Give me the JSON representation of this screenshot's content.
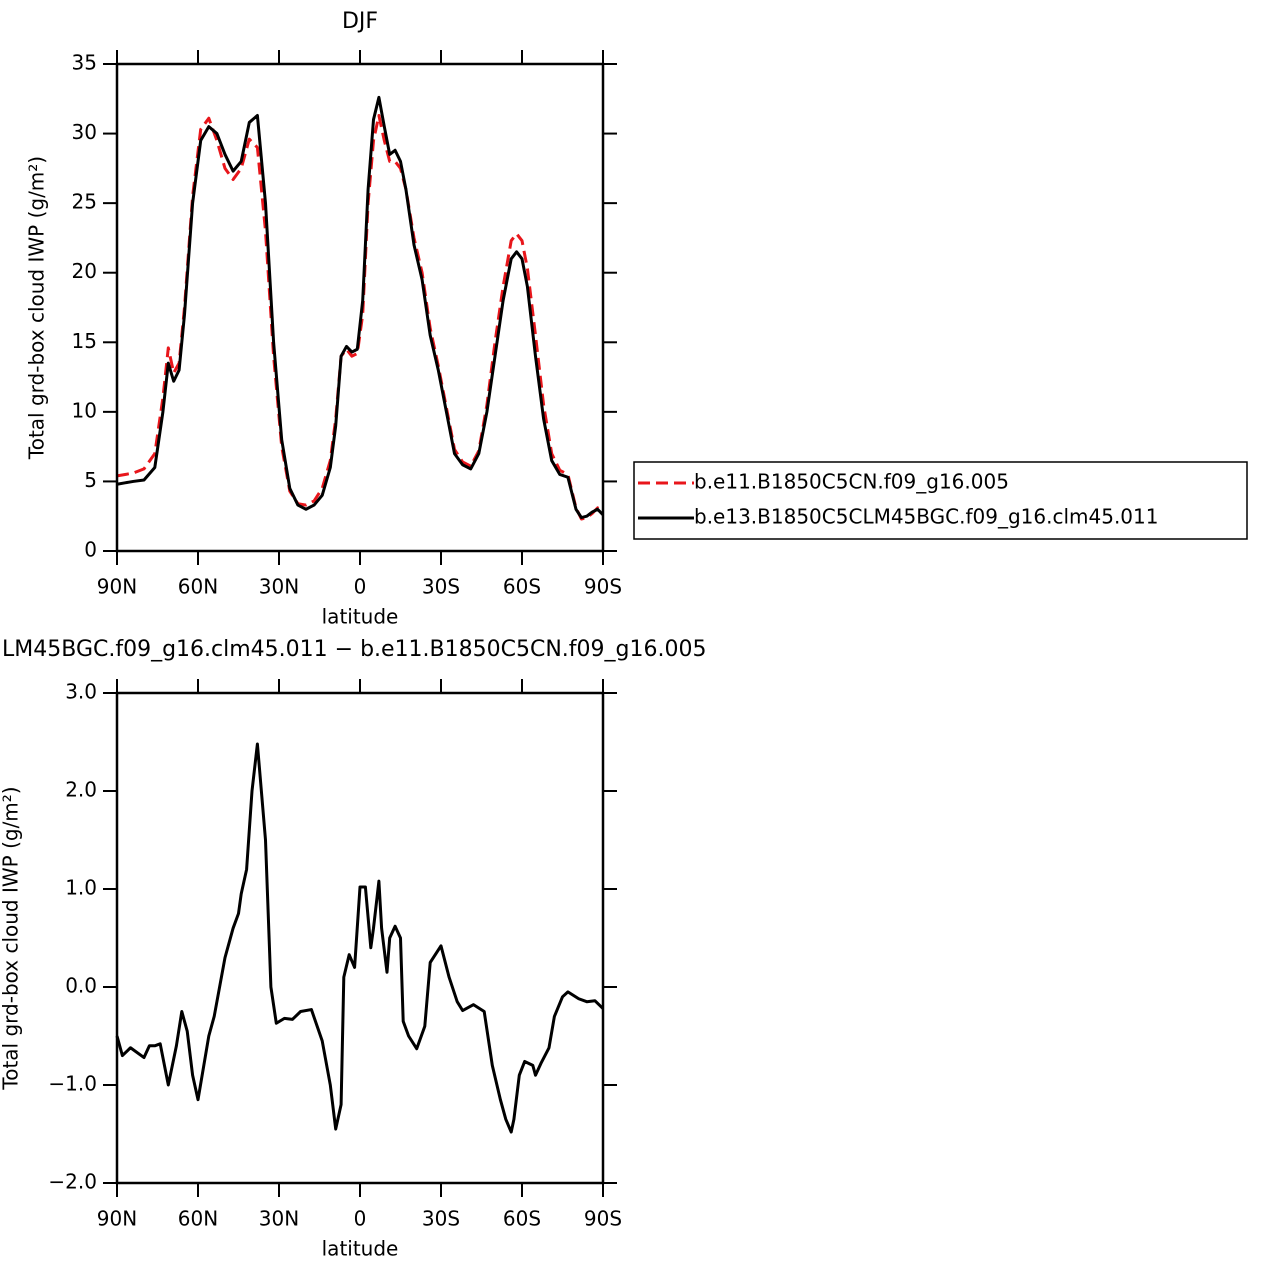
{
  "chart_data": [
    {
      "type": "line",
      "title": "DJF",
      "xlabel": "latitude",
      "ylabel": "Total grd-box cloud IWP (g/m²)",
      "x": [
        90,
        87,
        84,
        80,
        76,
        73,
        71,
        69,
        67,
        65,
        62,
        59,
        56,
        53,
        50,
        47,
        44,
        41,
        38,
        35,
        32,
        29,
        26,
        23,
        20,
        17,
        14,
        11,
        9,
        7,
        5,
        3,
        1,
        -1,
        -3,
        -5,
        -7,
        -9,
        -11,
        -13,
        -15,
        -17,
        -20,
        -23,
        -26,
        -29,
        -32,
        -35,
        -38,
        -41,
        -44,
        -47,
        -50,
        -53,
        -56,
        -58,
        -60,
        -62,
        -65,
        -68,
        -71,
        -74,
        -77,
        -80,
        -82,
        -84,
        -86,
        -88,
        -90
      ],
      "series": [
        {
          "name": "b.e11.B1850C5CN.f09_g16.005",
          "color": "#e8161b",
          "dash": "dashed",
          "values": [
            5.4,
            5.5,
            5.6,
            5.9,
            7,
            11,
            14.6,
            12.8,
            13.5,
            17.5,
            25.5,
            30.3,
            31.1,
            29.5,
            27.5,
            26.7,
            27.5,
            29.6,
            29,
            23,
            14,
            7.5,
            4.3,
            3.4,
            3.3,
            3.6,
            4.5,
            6.5,
            9.5,
            14,
            14.5,
            14,
            14.2,
            17,
            25,
            29.5,
            31.3,
            29.5,
            28,
            28,
            27.5,
            26,
            22.5,
            20,
            16,
            13.3,
            10.3,
            7.3,
            6.4,
            6.1,
            7.2,
            10.5,
            15,
            19,
            22.3,
            22.8,
            22.3,
            20.3,
            15.5,
            10.5,
            7,
            5.8,
            5.5,
            3.1,
            2.3,
            2.4,
            2.7,
            3.1,
            2.7
          ]
        },
        {
          "name": "b.e13.B1850C5CLM45BGC.f09_g16.clm45.011",
          "color": "#000000",
          "dash": "solid",
          "values": [
            4.8,
            4.9,
            5.0,
            5.1,
            6,
            10,
            13.5,
            12.2,
            13,
            17,
            25,
            29.5,
            30.5,
            30,
            28.5,
            27.3,
            28,
            30.8,
            31.3,
            25,
            15,
            8,
            4.5,
            3.3,
            3,
            3.3,
            4,
            6,
            9,
            14,
            14.7,
            14.3,
            14.5,
            18,
            26,
            31,
            32.6,
            30.5,
            28.5,
            28.8,
            28,
            26,
            22,
            19.5,
            15.5,
            13,
            10,
            7,
            6.2,
            5.9,
            7,
            10,
            14,
            18,
            21,
            21.5,
            21,
            19,
            14,
            9.5,
            6.5,
            5.5,
            5.3,
            3,
            2.4,
            2.5,
            2.8,
            3,
            2.6
          ]
        }
      ],
      "xlim": [
        90,
        -90
      ],
      "xticks": [
        {
          "value": 90,
          "label": "90N"
        },
        {
          "value": 60,
          "label": "60N"
        },
        {
          "value": 30,
          "label": "30N"
        },
        0,
        {
          "value": -30,
          "label": "30S"
        },
        {
          "value": -60,
          "label": "60S"
        },
        {
          "value": -90,
          "label": "90S"
        }
      ],
      "ylim": [
        0,
        35
      ],
      "yticks": [
        0,
        5,
        10,
        15,
        20,
        25,
        30,
        35
      ],
      "legend": "right"
    },
    {
      "type": "line",
      "title": "LM45BGC.f09_g16.clm45.011 − b.e11.B1850C5CN.f09_g16.005",
      "xlabel": "latitude",
      "ylabel": "Total grd-box cloud IWP (g/m²)",
      "x": [
        90,
        88,
        85,
        80,
        78,
        76,
        74,
        71,
        68,
        66,
        64,
        62,
        60,
        56,
        54,
        50,
        47,
        45,
        44,
        42,
        40,
        38,
        35,
        33,
        31,
        28,
        25,
        22,
        18,
        14,
        11,
        9,
        7,
        6,
        4,
        2,
        0,
        -2,
        -4,
        -5,
        -7,
        -8,
        -10,
        -11,
        -13,
        -15,
        -16,
        -18,
        -21,
        -24,
        -26,
        -30,
        -33,
        -36,
        -38,
        -42,
        -46,
        -49,
        -52,
        -54,
        -56,
        -57,
        -59,
        -61,
        -64,
        -65,
        -67,
        -70,
        -72,
        -75,
        -77,
        -81,
        -84,
        -87,
        -90
      ],
      "series": [
        {
          "color": "#000000",
          "dash": "solid",
          "values": [
            -0.5,
            -0.7,
            -0.62,
            -0.72,
            -0.6,
            -0.6,
            -0.58,
            -1.0,
            -0.6,
            -0.25,
            -0.45,
            -0.9,
            -1.15,
            -0.5,
            -0.3,
            0.3,
            0.6,
            0.75,
            0.95,
            1.2,
            2.0,
            2.48,
            1.5,
            0.0,
            -0.37,
            -0.32,
            -0.33,
            -0.25,
            -0.23,
            -0.55,
            -1.0,
            -1.45,
            -1.2,
            0.1,
            0.33,
            0.2,
            1.02,
            1.02,
            0.4,
            0.6,
            1.08,
            0.6,
            0.15,
            0.5,
            0.62,
            0.5,
            -0.35,
            -0.5,
            -0.63,
            -0.4,
            0.25,
            0.42,
            0.1,
            -0.15,
            -0.24,
            -0.18,
            -0.25,
            -0.8,
            -1.15,
            -1.35,
            -1.48,
            -1.35,
            -0.9,
            -0.76,
            -0.8,
            -0.9,
            -0.78,
            -0.62,
            -0.3,
            -0.1,
            -0.05,
            -0.12,
            -0.15,
            -0.14,
            -0.22
          ]
        }
      ],
      "xlim": [
        90,
        -90
      ],
      "xticks": [
        {
          "value": 90,
          "label": "90N"
        },
        {
          "value": 60,
          "label": "60N"
        },
        {
          "value": 30,
          "label": "30N"
        },
        0,
        {
          "value": -30,
          "label": "30S"
        },
        {
          "value": -60,
          "label": "60S"
        },
        {
          "value": -90,
          "label": "90S"
        }
      ],
      "ylim": [
        -2,
        3
      ],
      "yticks": [
        {
          "value": -2,
          "label": "−2.0"
        },
        {
          "value": -1,
          "label": "−1.0"
        },
        {
          "value": 0,
          "label": "0.0"
        },
        {
          "value": 1,
          "label": "1.0"
        },
        {
          "value": 2,
          "label": "2.0"
        },
        {
          "value": 3,
          "label": "3.0"
        }
      ]
    }
  ]
}
